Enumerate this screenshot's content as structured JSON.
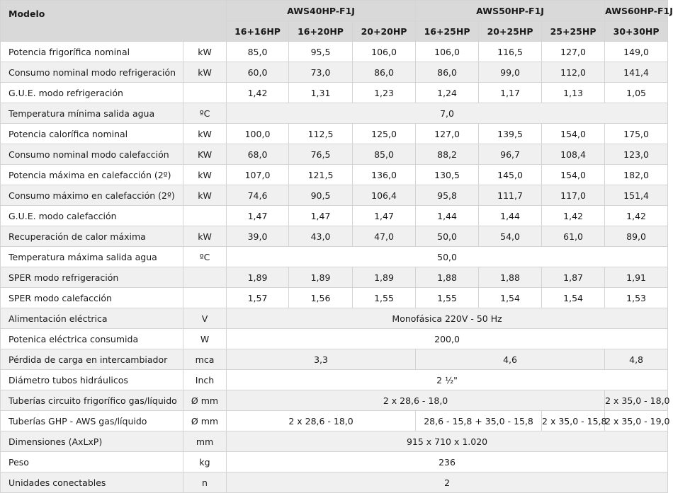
{
  "header": {
    "modelo": "Modelo",
    "models": [
      "AWS40HP-F1J",
      "AWS50HP-F1J",
      "AWS60HP-F1J"
    ],
    "configs": [
      "16+16HP",
      "16+20HP",
      "20+20HP",
      "16+25HP",
      "20+25HP",
      "25+25HP",
      "30+30HP"
    ]
  },
  "rows": [
    {
      "label": "Potencia frigorífica nominal",
      "unit": "kW",
      "values": [
        "85,0",
        "95,5",
        "106,0",
        "106,0",
        "116,5",
        "127,0",
        "149,0"
      ]
    },
    {
      "label": "Consumo nominal modo refrigeración",
      "unit": "kW",
      "values": [
        "60,0",
        "73,0",
        "86,0",
        "86,0",
        "99,0",
        "112,0",
        "141,4"
      ]
    },
    {
      "label": "G.U.E. modo refrigeración",
      "unit": "",
      "values": [
        "1,42",
        "1,31",
        "1,23",
        "1,24",
        "1,17",
        "1,13",
        "1,05"
      ]
    },
    {
      "label": "Temperatura mínima salida agua",
      "unit": "ºC",
      "value": "7,0"
    },
    {
      "label": "Potencia calorífica nominal",
      "unit": "kW",
      "values": [
        "100,0",
        "112,5",
        "125,0",
        "127,0",
        "139,5",
        "154,0",
        "175,0"
      ]
    },
    {
      "label": "Consumo nominal modo calefacción",
      "unit": "KW",
      "values": [
        "68,0",
        "76,5",
        "85,0",
        "88,2",
        "96,7",
        "108,4",
        "123,0"
      ]
    },
    {
      "label": "Potencia máxima en calefacción (2º)",
      "unit": "kW",
      "values": [
        "107,0",
        "121,5",
        "136,0",
        "130,5",
        "145,0",
        "154,0",
        "182,0"
      ]
    },
    {
      "label": "Consumo máximo en calefacción (2º)",
      "unit": "kW",
      "values": [
        "74,6",
        "90,5",
        "106,4",
        "95,8",
        "111,7",
        "117,0",
        "151,4"
      ]
    },
    {
      "label": "G.U.E. modo calefacción",
      "unit": "",
      "values": [
        "1,47",
        "1,47",
        "1,47",
        "1,44",
        "1,44",
        "1,42",
        "1,42"
      ]
    },
    {
      "label": "Recuperación de calor máxima",
      "unit": "kW",
      "values": [
        "39,0",
        "43,0",
        "47,0",
        "50,0",
        "54,0",
        "61,0",
        "89,0"
      ]
    },
    {
      "label": "Temperatura máxima salida agua",
      "unit": "ºC",
      "value": "50,0"
    },
    {
      "label": "SPER modo refrigeración",
      "unit": "",
      "values": [
        "1,89",
        "1,89",
        "1,89",
        "1,88",
        "1,88",
        "1,87",
        "1,91"
      ]
    },
    {
      "label": "SPER modo calefacción",
      "unit": "",
      "values": [
        "1,57",
        "1,56",
        "1,55",
        "1,55",
        "1,54",
        "1,54",
        "1,53"
      ]
    },
    {
      "label": "Alimentación eléctrica",
      "unit": "V",
      "value": "Monofásica 220V - 50 Hz"
    },
    {
      "label": "Potenica eléctrica consumida",
      "unit": "W",
      "value": "200,0"
    },
    {
      "label": "Pérdida de carga en intercambiador",
      "unit": "mca",
      "groups": [
        "3,3",
        "4,6",
        "4,8"
      ]
    },
    {
      "label": "Diámetro tubos hidráulicos",
      "unit": "Inch",
      "value": "2 ½\""
    },
    {
      "label": "Tuberías circuito frigorífico gas/líquido",
      "unit": "Ø mm",
      "a": "2 x 28,6 - 18,0",
      "b": "2 x 35,0 - 18,0"
    },
    {
      "label": "Tuberías GHP - AWS gas/líquido",
      "unit": "Ø mm",
      "a": "2 x 28,6 - 18,0",
      "b": "28,6 - 15,8 + 35,0 - 15,8",
      "c": "2 x 35,0 - 15,8",
      "d": "2 x 35,0 - 19,0"
    },
    {
      "label": "Dimensiones (AxLxP)",
      "unit": "mm",
      "value": "915 x 710 x 1.020"
    },
    {
      "label": "Peso",
      "unit": "kg",
      "value": "236"
    },
    {
      "label": "Unidades conectables",
      "unit": "n",
      "value": "2"
    }
  ]
}
